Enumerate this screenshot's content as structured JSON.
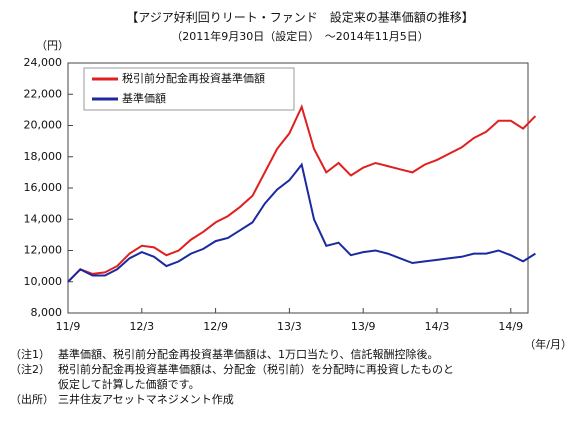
{
  "chart_data": {
    "type": "line",
    "title": "【アジア好利回りリート・ファンド　設定来の基準価額の推移】",
    "subtitle": "（2011年9月30日（設定日）　～2014年11月5日）",
    "y_unit": "（円）",
    "x_unit": "（年/月）",
    "categories": [
      "11/9",
      null,
      null,
      null,
      null,
      null,
      "12/3",
      null,
      null,
      null,
      null,
      null,
      "12/9",
      null,
      null,
      null,
      null,
      null,
      "13/3",
      null,
      null,
      null,
      null,
      null,
      "13/9",
      null,
      null,
      null,
      null,
      null,
      "14/3",
      null,
      null,
      null,
      null,
      null,
      "14/9",
      null,
      null
    ],
    "series": [
      {
        "name": "税引前分配金再投資基準価額",
        "color": "#e02020",
        "values": [
          10000,
          10800,
          10500,
          10600,
          11000,
          11800,
          12300,
          12200,
          11700,
          12000,
          12700,
          13200,
          13800,
          14200,
          14800,
          15500,
          17000,
          18500,
          19500,
          21200,
          18500,
          17000,
          17600,
          16800,
          17300,
          17600,
          17400,
          17200,
          17000,
          17500,
          17800,
          18200,
          18600,
          19200,
          19600,
          20300,
          20300,
          19800,
          20600
        ]
      },
      {
        "name": "基準価額",
        "color": "#1a2aa0",
        "values": [
          10000,
          10800,
          10400,
          10400,
          10800,
          11500,
          11900,
          11600,
          11000,
          11300,
          11800,
          12100,
          12600,
          12800,
          13300,
          13800,
          15000,
          15900,
          16500,
          17500,
          14000,
          12300,
          12500,
          11700,
          11900,
          12000,
          11800,
          11500,
          11200,
          11300,
          11400,
          11500,
          11600,
          11800,
          11800,
          12000,
          11700,
          11300,
          11800
        ]
      }
    ],
    "ylim": [
      8000,
      24000
    ],
    "yticks": [
      {
        "value": 8000,
        "label": "8,000"
      },
      {
        "value": 10000,
        "label": "10,000"
      },
      {
        "value": 12000,
        "label": "12,000"
      },
      {
        "value": 14000,
        "label": "14,000"
      },
      {
        "value": 16000,
        "label": "16,000"
      },
      {
        "value": 18000,
        "label": "18,000"
      },
      {
        "value": 20000,
        "label": "20,000"
      },
      {
        "value": 22000,
        "label": "22,000"
      },
      {
        "value": 24000,
        "label": "24,000"
      }
    ],
    "notes": [
      {
        "mark": "（注1）",
        "lines": [
          "基準価額、税引前分配金再投資基準価額は、1万口当たり、信託報酬控除後。"
        ]
      },
      {
        "mark": "（注2）",
        "lines": [
          "税引前分配金再投資基準価額は、分配金（税引前）を分配時に再投資したものと",
          "仮定して計算した価額です。"
        ]
      },
      {
        "mark": "（出所）",
        "lines": [
          "三井住友アセットマネジメント作成"
        ]
      }
    ]
  }
}
